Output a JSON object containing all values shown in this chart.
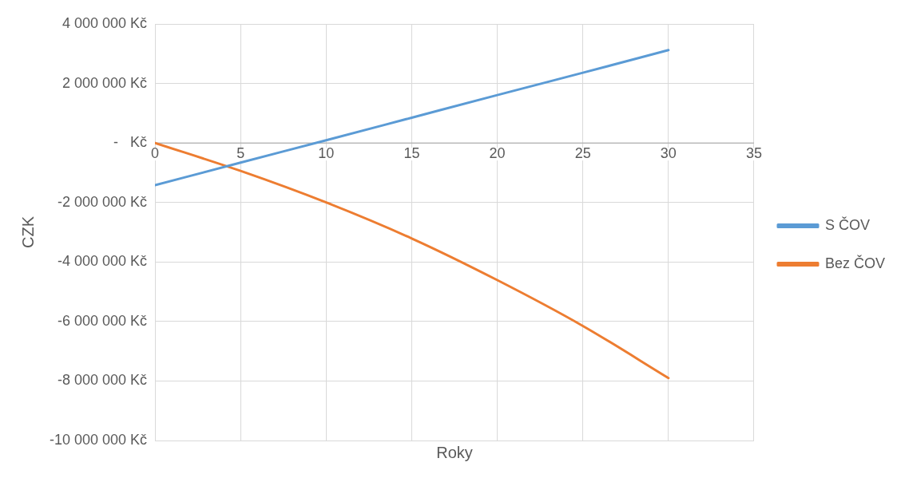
{
  "chart_data": {
    "type": "line",
    "xlabel": "Roky",
    "ylabel": "CZK",
    "x": [
      0,
      5,
      10,
      15,
      20,
      25,
      30
    ],
    "series": [
      {
        "name": "S ČOV",
        "color": "#5b9bd5",
        "values": [
          -1420000,
          -660000,
          90000,
          850000,
          1610000,
          2360000,
          3120000
        ]
      },
      {
        "name": "Bez ČOV",
        "color": "#ed7d31",
        "values": [
          0,
          -940000,
          -2000000,
          -3210000,
          -4610000,
          -6150000,
          -7900000
        ]
      }
    ],
    "xlim": [
      0,
      35
    ],
    "xticks": [
      0,
      5,
      10,
      15,
      20,
      25,
      30,
      35
    ],
    "ylim": [
      -10000000,
      4000000
    ],
    "yticks": [
      {
        "value": -10000000,
        "label": "-10 000 000 Kč"
      },
      {
        "value": -8000000,
        "label": "-8 000 000 Kč"
      },
      {
        "value": -6000000,
        "label": "-6 000 000 Kč"
      },
      {
        "value": -4000000,
        "label": "-4 000 000 Kč"
      },
      {
        "value": -2000000,
        "label": "-2 000 000 Kč"
      },
      {
        "value": 0,
        "label": "-   Kč"
      },
      {
        "value": 2000000,
        "label": "2 000 000 Kč"
      },
      {
        "value": 4000000,
        "label": "4 000 000 Kč"
      }
    ],
    "grid": true,
    "legend": "right",
    "marker": "none",
    "line_style": "solid"
  }
}
